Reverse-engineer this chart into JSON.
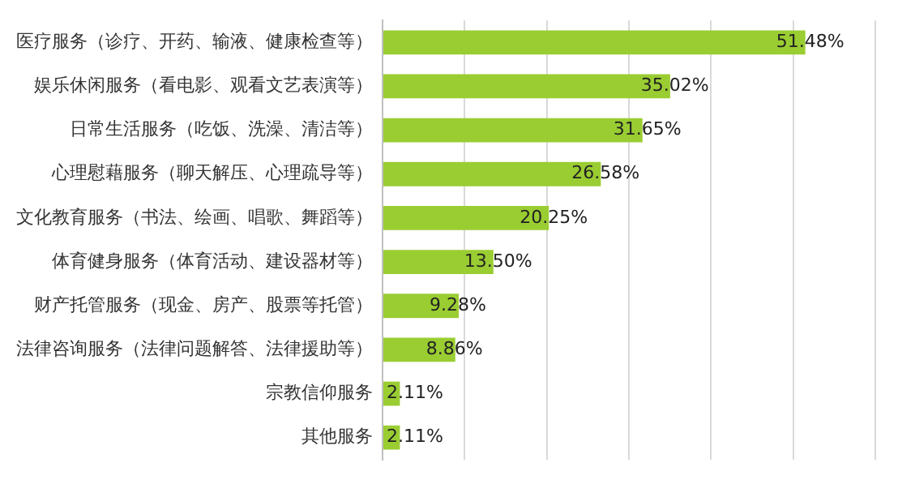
{
  "chart_data": {
    "type": "bar",
    "orientation": "horizontal",
    "categories": [
      "医疗服务（诊疗、开药、输液、健康检查等）",
      "娱乐休闲服务（看电影、观看文艺表演等）",
      "日常生活服务（吃饭、洗澡、清洁等）",
      "心理慰藉服务（聊天解压、心理疏导等）",
      "文化教育服务（书法、绘画、唱歌、舞蹈等）",
      "体育健身服务（体育活动、建设器材等）",
      "财产托管服务（现金、房产、股票等托管）",
      "法律咨询服务（法律问题解答、法律援助等）",
      "宗教信仰服务",
      "其他服务"
    ],
    "values": [
      51.48,
      35.02,
      31.65,
      26.58,
      20.25,
      13.5,
      9.28,
      8.86,
      2.11,
      2.11
    ],
    "value_labels": [
      "51.48%",
      "35.02%",
      "31.65%",
      "26.58%",
      "20.25%",
      "13.50%",
      "9.28%",
      "8.86%",
      "2.11%",
      "2.11%"
    ],
    "color": "#9acd32",
    "xlim": [
      0,
      60
    ],
    "xticks": [
      {
        "value": 0,
        "label": null
      },
      {
        "value": 10,
        "label": null
      },
      {
        "value": 20,
        "label": null
      },
      {
        "value": 30,
        "label": null
      },
      {
        "value": 40,
        "label": null
      },
      {
        "value": 50,
        "label": null
      },
      {
        "value": 60,
        "label": null
      }
    ],
    "grid": "x",
    "tick_labels": "y"
  }
}
